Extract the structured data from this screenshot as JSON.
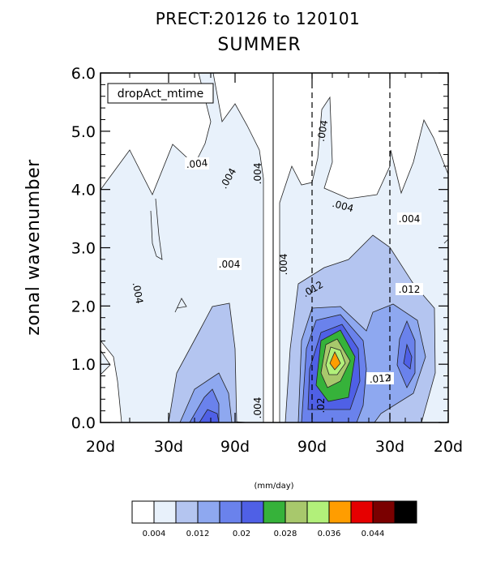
{
  "chart_data": {
    "type": "contour",
    "title": "PRECT:20126 to 120101",
    "subtitle": "SUMMER",
    "ylabel": "zonal wavenumber",
    "ylim": [
      0,
      6
    ],
    "y_ticks": [
      "0.0",
      "1.0",
      "2.0",
      "3.0",
      "4.0",
      "5.0",
      "6.0"
    ],
    "x_tick_labels": [
      "20d",
      "30d",
      "90d",
      "90d",
      "30d",
      "20d"
    ],
    "inset_label": "dropAct_mtime",
    "contour_labels": [
      ".004",
      ".004",
      ".004",
      ".004",
      ".004",
      ".004",
      ".004",
      ".004",
      ".004",
      ".004",
      ".012",
      ".012",
      ".012",
      ".02"
    ],
    "colorbar": {
      "unit_label": "(mm/day)",
      "colors": [
        "#ffffff",
        "#e8f1fb",
        "#b4c5f0",
        "#8ea8f0",
        "#6a82ec",
        "#4f60e6",
        "#36b23a",
        "#a8c86c",
        "#b2f07a",
        "#ff9d00",
        "#e60000",
        "#7a0000",
        "#000000"
      ],
      "tick_labels": [
        "0.004",
        "0.012",
        "0.02",
        "0.028",
        "0.036",
        "0.044"
      ]
    },
    "grid": false,
    "legend": "bottom"
  }
}
